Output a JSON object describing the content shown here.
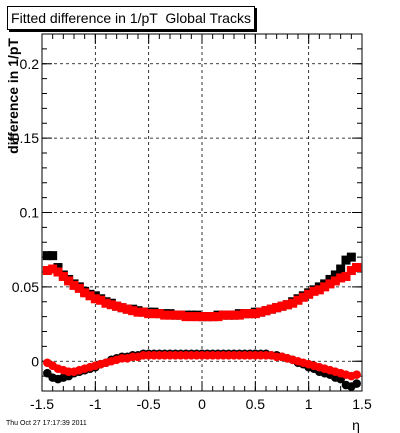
{
  "title": "Fitted difference in 1/pT  Global Tracks",
  "timestamp": "Thu Oct 27 17:17:39 2011",
  "chart_data": {
    "type": "scatter",
    "title": "Fitted difference in 1/pT  Global Tracks",
    "xlabel": "η",
    "ylabel": "difference in 1/pT",
    "xlim": [
      -1.5,
      1.5
    ],
    "ylim": [
      -0.02,
      0.22
    ],
    "grid": true,
    "xticks": [
      "-1.5",
      "-1",
      "-0.5",
      "0",
      "0.5",
      "1",
      "1.5"
    ],
    "yticks": [
      "0",
      "0.05",
      "0.1",
      "0.15",
      "0.2"
    ],
    "series": [
      {
        "marker": "square",
        "color": "#000000",
        "x": [
          -1.45,
          -1.4,
          -1.35,
          -1.3,
          -1.25,
          -1.2,
          -1.15,
          -1.1,
          -1.05,
          -1.0,
          -0.95,
          -0.9,
          -0.85,
          -0.8,
          -0.75,
          -0.7,
          -0.65,
          -0.6,
          -0.55,
          -0.5,
          -0.45,
          -0.4,
          -0.35,
          -0.3,
          -0.25,
          -0.2,
          -0.15,
          -0.1,
          -0.05,
          0.0,
          0.05,
          0.1,
          0.15,
          0.2,
          0.25,
          0.3,
          0.35,
          0.4,
          0.45,
          0.5,
          0.55,
          0.6,
          0.65,
          0.7,
          0.75,
          0.8,
          0.85,
          0.9,
          0.95,
          1.0,
          1.05,
          1.1,
          1.15,
          1.2,
          1.25,
          1.3,
          1.35,
          1.4,
          1.45
        ],
        "y": [
          0.071,
          0.071,
          0.063,
          0.058,
          0.055,
          0.052,
          0.05,
          0.047,
          0.045,
          0.044,
          0.042,
          0.04,
          0.039,
          0.037,
          0.036,
          0.035,
          0.035,
          0.034,
          0.033,
          0.033,
          0.033,
          0.032,
          0.032,
          0.032,
          0.031,
          0.031,
          0.031,
          0.031,
          0.031,
          0.03,
          0.03,
          0.03,
          0.031,
          0.031,
          0.031,
          0.031,
          0.032,
          0.032,
          0.032,
          0.033,
          0.033,
          0.034,
          0.035,
          0.036,
          0.037,
          0.038,
          0.04,
          0.042,
          0.044,
          0.046,
          0.048,
          0.05,
          0.052,
          0.055,
          0.058,
          0.062,
          0.068,
          0.07,
          0.063
        ]
      },
      {
        "marker": "square",
        "color": "#ff0000",
        "x": [
          -1.45,
          -1.4,
          -1.35,
          -1.3,
          -1.25,
          -1.2,
          -1.15,
          -1.1,
          -1.05,
          -1.0,
          -0.95,
          -0.9,
          -0.85,
          -0.8,
          -0.75,
          -0.7,
          -0.65,
          -0.6,
          -0.55,
          -0.5,
          -0.45,
          -0.4,
          -0.35,
          -0.3,
          -0.25,
          -0.2,
          -0.15,
          -0.1,
          -0.05,
          0.0,
          0.05,
          0.1,
          0.15,
          0.2,
          0.25,
          0.3,
          0.35,
          0.4,
          0.45,
          0.5,
          0.55,
          0.6,
          0.65,
          0.7,
          0.75,
          0.8,
          0.85,
          0.9,
          0.95,
          1.0,
          1.05,
          1.1,
          1.15,
          1.2,
          1.25,
          1.3,
          1.35,
          1.4,
          1.45
        ],
        "y": [
          0.061,
          0.062,
          0.06,
          0.057,
          0.054,
          0.051,
          0.049,
          0.046,
          0.044,
          0.042,
          0.041,
          0.039,
          0.038,
          0.037,
          0.036,
          0.035,
          0.034,
          0.033,
          0.033,
          0.032,
          0.032,
          0.032,
          0.031,
          0.031,
          0.031,
          0.031,
          0.03,
          0.03,
          0.03,
          0.03,
          0.03,
          0.03,
          0.03,
          0.031,
          0.031,
          0.031,
          0.031,
          0.032,
          0.032,
          0.032,
          0.033,
          0.034,
          0.035,
          0.036,
          0.037,
          0.038,
          0.039,
          0.041,
          0.043,
          0.045,
          0.047,
          0.048,
          0.05,
          0.052,
          0.054,
          0.056,
          0.057,
          0.061,
          0.063
        ]
      },
      {
        "marker": "circle",
        "color": "#000000",
        "x": [
          -1.45,
          -1.4,
          -1.35,
          -1.3,
          -1.25,
          -1.2,
          -1.15,
          -1.1,
          -1.05,
          -1.0,
          -0.95,
          -0.9,
          -0.85,
          -0.8,
          -0.75,
          -0.7,
          -0.65,
          -0.6,
          -0.55,
          -0.5,
          -0.45,
          -0.4,
          -0.35,
          -0.3,
          -0.25,
          -0.2,
          -0.15,
          -0.1,
          -0.05,
          0.0,
          0.05,
          0.1,
          0.15,
          0.2,
          0.25,
          0.3,
          0.35,
          0.4,
          0.45,
          0.5,
          0.55,
          0.6,
          0.65,
          0.7,
          0.75,
          0.8,
          0.85,
          0.9,
          0.95,
          1.0,
          1.05,
          1.1,
          1.15,
          1.2,
          1.25,
          1.3,
          1.35,
          1.4,
          1.45
        ],
        "y": [
          -0.008,
          -0.011,
          -0.012,
          -0.011,
          -0.01,
          -0.008,
          -0.007,
          -0.006,
          -0.005,
          -0.004,
          -0.002,
          -0.001,
          0.001,
          0.002,
          0.003,
          0.003,
          0.004,
          0.004,
          0.005,
          0.005,
          0.005,
          0.005,
          0.005,
          0.005,
          0.005,
          0.005,
          0.005,
          0.005,
          0.005,
          0.005,
          0.005,
          0.005,
          0.005,
          0.005,
          0.005,
          0.005,
          0.005,
          0.005,
          0.005,
          0.005,
          0.005,
          0.005,
          0.004,
          0.004,
          0.003,
          0.002,
          0.001,
          -0.001,
          -0.002,
          -0.004,
          -0.005,
          -0.007,
          -0.008,
          -0.009,
          -0.011,
          -0.012,
          -0.016,
          -0.017,
          -0.015
        ]
      },
      {
        "marker": "circle",
        "color": "#ff0000",
        "x": [
          -1.45,
          -1.4,
          -1.35,
          -1.3,
          -1.25,
          -1.2,
          -1.15,
          -1.1,
          -1.05,
          -1.0,
          -0.95,
          -0.9,
          -0.85,
          -0.8,
          -0.75,
          -0.7,
          -0.65,
          -0.6,
          -0.55,
          -0.5,
          -0.45,
          -0.4,
          -0.35,
          -0.3,
          -0.25,
          -0.2,
          -0.15,
          -0.1,
          -0.05,
          0.0,
          0.05,
          0.1,
          0.15,
          0.2,
          0.25,
          0.3,
          0.35,
          0.4,
          0.45,
          0.5,
          0.55,
          0.6,
          0.65,
          0.7,
          0.75,
          0.8,
          0.85,
          0.9,
          0.95,
          1.0,
          1.05,
          1.1,
          1.15,
          1.2,
          1.25,
          1.3,
          1.35,
          1.4,
          1.45
        ],
        "y": [
          -0.001,
          -0.003,
          -0.005,
          -0.006,
          -0.007,
          -0.007,
          -0.006,
          -0.005,
          -0.004,
          -0.003,
          -0.002,
          -0.001,
          0.0,
          0.001,
          0.002,
          0.002,
          0.003,
          0.003,
          0.004,
          0.004,
          0.004,
          0.004,
          0.004,
          0.004,
          0.004,
          0.004,
          0.004,
          0.004,
          0.004,
          0.004,
          0.004,
          0.004,
          0.004,
          0.004,
          0.004,
          0.004,
          0.004,
          0.004,
          0.004,
          0.004,
          0.004,
          0.004,
          0.004,
          0.003,
          0.003,
          0.002,
          0.001,
          0.0,
          -0.001,
          -0.002,
          -0.003,
          -0.004,
          -0.005,
          -0.006,
          -0.007,
          -0.008,
          -0.009,
          -0.01,
          -0.009
        ]
      }
    ]
  }
}
